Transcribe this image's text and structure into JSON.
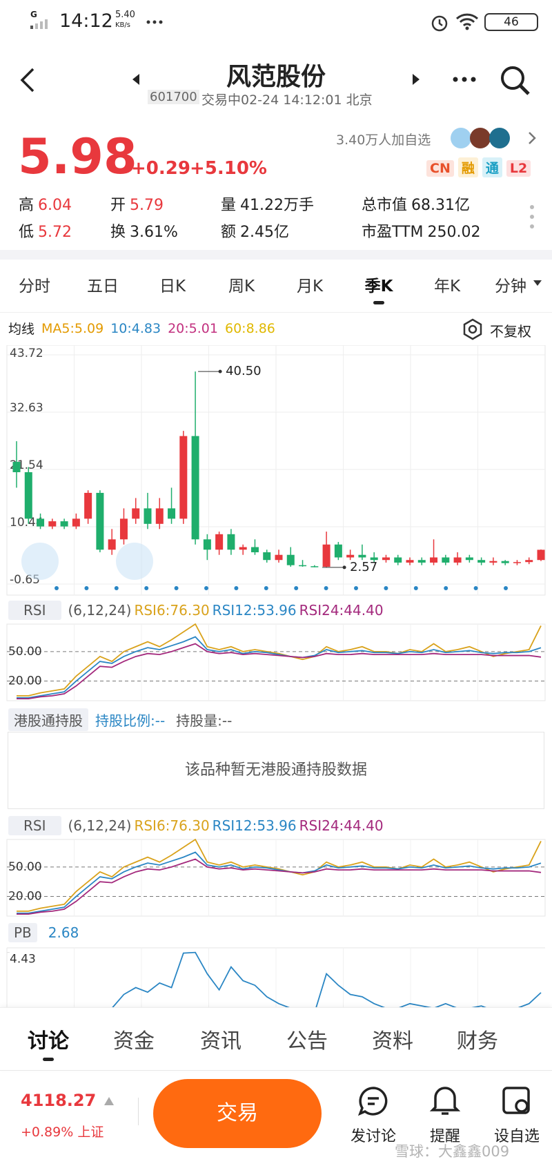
{
  "status_bar": {
    "network": "G",
    "time": "14:12",
    "speed": "5.40",
    "speed_unit": "KB/s",
    "battery": "46"
  },
  "header": {
    "title": "风范股份",
    "code": "601700",
    "status": "交易中02-24 14:12:01 北京"
  },
  "quote": {
    "price": "5.98",
    "change": "+0.29",
    "change_pct": "+5.10%",
    "followers": "3.40万人加自选",
    "badges": [
      "CN",
      "融",
      "通",
      "L2"
    ],
    "stats": [
      {
        "label": "高",
        "value": "6.04"
      },
      {
        "label": "开",
        "value": "5.79"
      },
      {
        "label": "量",
        "value": "41.22万手"
      },
      {
        "label": "总市值",
        "value": "68.31亿"
      },
      {
        "label": "低",
        "value": "5.72"
      },
      {
        "label": "换",
        "value": "3.61%"
      },
      {
        "label": "额",
        "value": "2.45亿"
      },
      {
        "label": "市盈TTM",
        "value": "250.02"
      }
    ]
  },
  "tabs": {
    "items": [
      "分时",
      "五日",
      "日K",
      "周K",
      "月K",
      "季K",
      "年K",
      "分钟"
    ],
    "active": 5
  },
  "chart": {
    "ma_label": "均线",
    "ma": [
      {
        "name": "MA5:5.09",
        "color": "#e39a00"
      },
      {
        "name": "10:4.83",
        "color": "#2a86c4"
      },
      {
        "name": "20:5.01",
        "color": "#c2307f"
      },
      {
        "name": "60:8.86",
        "color": "#e0b800"
      }
    ],
    "adjust": "不复权",
    "ylim": [
      -0.65,
      43.72
    ],
    "yticks": [
      43.72,
      32.63,
      21.54,
      10.44,
      -0.65
    ],
    "open": [
      23,
      21,
      12,
      10.5,
      11.5,
      10.5,
      12,
      17,
      6,
      8,
      12,
      14,
      11,
      14,
      12,
      28,
      8,
      6,
      9,
      6,
      6.5,
      5.5,
      4,
      5,
      3,
      2.8,
      2.7,
      7,
      4.5,
      5,
      4.5,
      4,
      4.5,
      3.5,
      4,
      3.5,
      4.5,
      3.5,
      4.5,
      4,
      3.5,
      3.8,
      3.4,
      3.6,
      4
    ],
    "close": [
      21,
      12,
      10.5,
      11.5,
      10.5,
      12,
      17,
      6,
      8,
      12,
      14,
      11,
      14,
      12,
      28,
      8,
      6,
      9,
      6,
      6.5,
      5.5,
      4,
      5,
      3,
      2.8,
      2.7,
      7,
      4.5,
      5,
      4.5,
      4,
      4.5,
      3.5,
      4,
      3.5,
      4.5,
      3.5,
      4.5,
      4,
      3.5,
      3.8,
      3.4,
      3.6,
      4,
      5.98
    ],
    "high": [
      27,
      22,
      13,
      12,
      12,
      13,
      17.5,
      17.5,
      10,
      14,
      16,
      17,
      16,
      18,
      29,
      40.5,
      9,
      9.5,
      10,
      7,
      8,
      6,
      6,
      6.5,
      4,
      3,
      9.5,
      7.5,
      6,
      7,
      5.5,
      5,
      5,
      4.5,
      4.5,
      8,
      5,
      5.5,
      5,
      4.5,
      4.5,
      4,
      4,
      4.5,
      6.04
    ],
    "low": [
      18,
      11,
      10,
      10,
      10,
      10,
      11,
      5.5,
      5,
      7,
      11,
      10,
      10,
      11,
      11,
      7,
      4,
      5,
      5,
      5,
      5,
      3.5,
      3.5,
      2.7,
      2.7,
      2.6,
      2.57,
      4,
      4,
      4,
      3.5,
      3.5,
      3,
      3,
      3,
      3,
      3,
      3,
      3.5,
      3,
      3,
      3,
      3,
      3.2,
      3.8
    ],
    "up_color": "#e8383d",
    "down_color": "#1fae6c",
    "high_label": {
      "value": 40.5,
      "label": "40.50"
    },
    "low_label": 2.57
  },
  "rsi": {
    "label": "RSI",
    "params": "(6,12,24)",
    "ylim": [
      0,
      78
    ],
    "yticks": [
      {
        "value": 50,
        "label": "50.00"
      },
      {
        "value": 20,
        "label": "20.00"
      }
    ],
    "series": [
      {
        "name": "RSI6:76.30",
        "color": "#d9a21b",
        "values": [
          5,
          5,
          8,
          10,
          12,
          25,
          35,
          45,
          40,
          50,
          55,
          60,
          55,
          62,
          70,
          78,
          55,
          52,
          55,
          50,
          52,
          50,
          48,
          45,
          42,
          45,
          55,
          50,
          52,
          55,
          50,
          50,
          48,
          52,
          50,
          58,
          50,
          52,
          55,
          50,
          45,
          48,
          50,
          52,
          76.3
        ]
      },
      {
        "name": "RSI12:53.96",
        "color": "#2a86c4",
        "values": [
          3,
          3,
          5,
          7,
          9,
          20,
          30,
          40,
          38,
          45,
          50,
          54,
          52,
          56,
          60,
          65,
          52,
          50,
          52,
          48,
          50,
          49,
          47,
          45,
          44,
          46,
          52,
          49,
          50,
          51,
          49,
          49,
          48,
          50,
          49,
          52,
          49,
          50,
          51,
          49,
          48,
          49,
          49,
          50,
          53.96
        ]
      },
      {
        "name": "RSI24:44.40",
        "color": "#a3287c",
        "values": [
          2,
          2,
          4,
          5,
          7,
          15,
          25,
          35,
          34,
          40,
          45,
          48,
          47,
          50,
          54,
          58,
          50,
          48,
          49,
          47,
          48,
          47,
          46,
          45,
          44,
          45,
          48,
          47,
          47,
          48,
          47,
          47,
          47,
          47,
          47,
          48,
          47,
          47,
          47,
          47,
          46,
          46,
          46,
          46,
          44.4
        ]
      }
    ]
  },
  "hk": {
    "label": "港股通持股",
    "ratio": "持股比例:--",
    "amount": "持股量:--",
    "empty": "该品种暂无港股通持股数据"
  },
  "pb": {
    "label": "PB",
    "value": "2.68",
    "color": "#2a86c4",
    "ylim": [
      0,
      4.6
    ],
    "yticks": [
      4.43
    ],
    "values": [
      null,
      null,
      null,
      null,
      null,
      null,
      null,
      null,
      2.0,
      2.6,
      2.9,
      2.7,
      3.1,
      2.9,
      4.4,
      4.43,
      3.5,
      2.8,
      3.8,
      3.2,
      3.0,
      2.5,
      2.2,
      2.0,
      2.0,
      1.8,
      3.5,
      3.0,
      2.6,
      2.5,
      2.2,
      2.0,
      2.0,
      2.2,
      2.1,
      2.0,
      2.2,
      2.0,
      2.0,
      2.1,
      1.9,
      1.9,
      2.0,
      2.2,
      2.68
    ]
  },
  "bottom_tabs": {
    "items": [
      "讨论",
      "资金",
      "资讯",
      "公告",
      "资料",
      "财务"
    ],
    "active": 0
  },
  "footer": {
    "index_value": "4118.27",
    "index_change": "+0.89% 上证",
    "trade": "交易",
    "actions": [
      "发讨论",
      "提醒",
      "设自选"
    ],
    "watermark": "雪球：大鑫鑫009"
  }
}
